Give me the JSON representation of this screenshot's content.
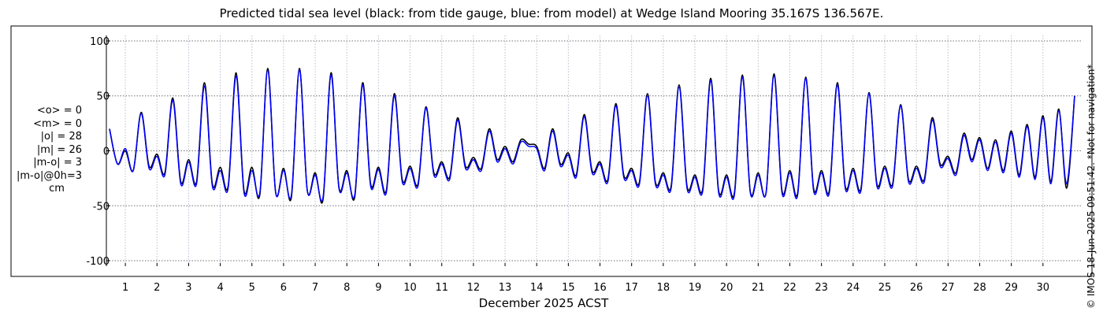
{
  "chart_data": {
    "type": "line",
    "title": "Predicted tidal sea level (black: from tide gauge, blue: from model) at Wedge Island Mooring 35.167S 136.567E.",
    "xlabel": "December 2025 ACST",
    "ylabel": "",
    "x_ticks": [
      "1",
      "2",
      "3",
      "4",
      "5",
      "6",
      "7",
      "8",
      "9",
      "10",
      "11",
      "12",
      "13",
      "14",
      "15",
      "16",
      "17",
      "18",
      "19",
      "20",
      "21",
      "22",
      "23",
      "24",
      "25",
      "26",
      "27",
      "28",
      "29",
      "30"
    ],
    "y_ticks": [
      "100",
      "50",
      "0",
      "-50",
      "-100"
    ],
    "xlim": [
      0.4,
      31.2
    ],
    "ylim": [
      -105,
      105
    ],
    "grid": true,
    "units": "cm",
    "series": [
      {
        "color": "#000000",
        "x_step_days": 0.25,
        "x_start": 0.5,
        "values": [
          20,
          -12,
          0,
          -18,
          35,
          -14,
          -3,
          -20,
          48,
          -28,
          -8,
          -28,
          62,
          -30,
          -15,
          -32,
          71,
          -36,
          -15,
          -40,
          75,
          -38,
          -16,
          -42,
          75,
          -36,
          -20,
          -44,
          71,
          -33,
          -18,
          -42,
          62,
          -30,
          -15,
          -36,
          52,
          -26,
          -14,
          -30,
          40,
          -20,
          -10,
          -24,
          30,
          -14,
          -6,
          -16,
          20,
          -8,
          4,
          -10,
          10,
          6,
          4,
          -16,
          20,
          -12,
          -2,
          -22,
          33,
          -18,
          -10,
          -26,
          43,
          -22,
          -16,
          -28,
          52,
          -28,
          -20,
          -32,
          60,
          -32,
          -22,
          -34,
          66,
          -36,
          -22,
          -38,
          69,
          -37,
          -20,
          -38,
          70,
          -36,
          -18,
          -38,
          67,
          -34,
          -18,
          -36,
          62,
          -32,
          -16,
          -34,
          53,
          -30,
          -14,
          -30,
          42,
          -26,
          -14,
          -26,
          30,
          -12,
          -5,
          -20,
          16,
          -8,
          12,
          -16,
          10,
          -18,
          18,
          -22,
          24,
          -24,
          32,
          -28,
          38,
          -34,
          50
        ],
        "name": ""
      },
      {
        "color": "#0000ff",
        "x_step_days": 0.25,
        "x_start": 0.5,
        "values": [
          20,
          -12,
          2,
          -18,
          34,
          -16,
          -5,
          -22,
          46,
          -30,
          -10,
          -30,
          59,
          -32,
          -18,
          -34,
          68,
          -38,
          -18,
          -38,
          73,
          -38,
          -18,
          -40,
          74,
          -36,
          -22,
          -42,
          69,
          -34,
          -20,
          -40,
          60,
          -32,
          -17,
          -38,
          50,
          -28,
          -16,
          -32,
          39,
          -22,
          -12,
          -26,
          28,
          -16,
          -8,
          -18,
          18,
          -10,
          2,
          -12,
          8,
          4,
          2,
          -18,
          18,
          -14,
          -4,
          -24,
          31,
          -20,
          -12,
          -28,
          41,
          -24,
          -18,
          -30,
          50,
          -30,
          -22,
          -34,
          58,
          -34,
          -24,
          -36,
          64,
          -38,
          -24,
          -40,
          67,
          -38,
          -22,
          -38,
          68,
          -38,
          -20,
          -40,
          66,
          -36,
          -20,
          -38,
          60,
          -34,
          -18,
          -36,
          52,
          -32,
          -16,
          -32,
          41,
          -28,
          -16,
          -28,
          28,
          -14,
          -7,
          -22,
          14,
          -10,
          10,
          -18,
          8,
          -20,
          16,
          -24,
          22,
          -26,
          30,
          -30,
          36,
          -30,
          50
        ],
        "name": ""
      }
    ]
  },
  "stats": {
    "mean_o": "<o> = 0",
    "mean_m": "<m> = 0",
    "abs_o": "|o| = 28",
    "abs_m": "|m| = 26",
    "abs_diff": "|m-o| = 3",
    "abs_diff_0h": "|m-o|@0h=3",
    "unit": "cm"
  },
  "footer": "© IMOS 18-Jun-2025 09:51:42. *Not for navigation*"
}
